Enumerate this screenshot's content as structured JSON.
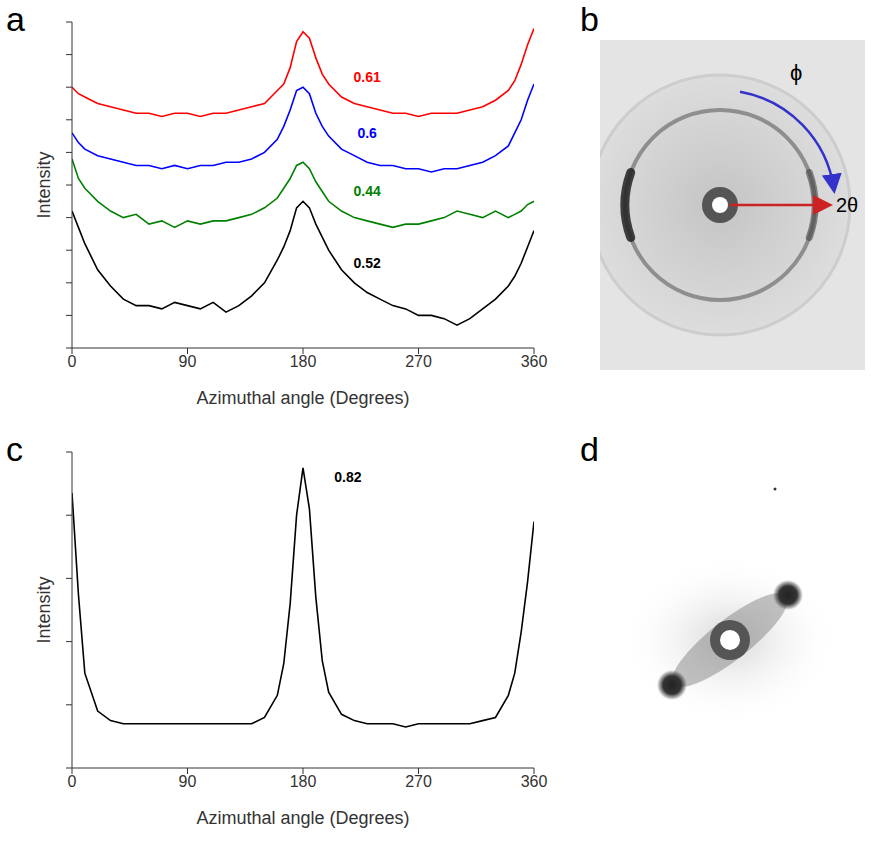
{
  "chart_data": [
    {
      "panel": "a",
      "type": "line",
      "x_label": "Azimuthal angle (Degrees)",
      "y_label": "Intensity",
      "x": [
        0,
        5,
        10,
        20,
        30,
        40,
        50,
        60,
        70,
        80,
        90,
        100,
        110,
        120,
        130,
        140,
        150,
        160,
        165,
        170,
        175,
        180,
        185,
        190,
        195,
        200,
        210,
        220,
        230,
        240,
        250,
        260,
        270,
        280,
        290,
        300,
        310,
        320,
        330,
        340,
        345,
        350,
        355,
        360
      ],
      "xlim": [
        0,
        360
      ],
      "xticks": [
        0,
        90,
        180,
        270,
        360
      ],
      "ylim": [
        0,
        10
      ],
      "yticks": [
        0,
        1,
        2,
        3,
        4,
        5,
        6,
        7,
        8,
        9,
        10
      ],
      "tick_labels": "x",
      "grid": false,
      "series": [
        {
          "name": "0.61",
          "color": "#ff0000",
          "values": [
            8.0,
            7.8,
            7.7,
            7.5,
            7.4,
            7.3,
            7.2,
            7.2,
            7.1,
            7.2,
            7.2,
            7.1,
            7.2,
            7.2,
            7.3,
            7.4,
            7.5,
            7.9,
            8.1,
            8.6,
            9.4,
            9.7,
            9.5,
            8.9,
            8.4,
            8.1,
            7.7,
            7.5,
            7.4,
            7.3,
            7.2,
            7.2,
            7.1,
            7.2,
            7.2,
            7.2,
            7.3,
            7.4,
            7.6,
            7.9,
            8.2,
            8.7,
            9.3,
            9.8
          ]
        },
        {
          "name": "0.6",
          "color": "#0000ff",
          "values": [
            6.6,
            6.3,
            6.1,
            5.9,
            5.8,
            5.7,
            5.6,
            5.6,
            5.5,
            5.6,
            5.5,
            5.6,
            5.6,
            5.7,
            5.7,
            5.8,
            6.0,
            6.4,
            6.8,
            7.3,
            7.9,
            8.0,
            7.8,
            7.2,
            6.8,
            6.5,
            6.1,
            5.9,
            5.7,
            5.6,
            5.6,
            5.5,
            5.5,
            5.4,
            5.5,
            5.5,
            5.6,
            5.7,
            5.9,
            6.2,
            6.6,
            7.0,
            7.6,
            8.1
          ]
        },
        {
          "name": "0.44",
          "color": "#008000",
          "values": [
            5.8,
            5.2,
            4.9,
            4.5,
            4.2,
            4.0,
            4.1,
            3.8,
            3.9,
            3.7,
            3.9,
            3.8,
            3.9,
            3.9,
            4.0,
            4.1,
            4.3,
            4.6,
            4.9,
            5.2,
            5.6,
            5.7,
            5.5,
            5.1,
            4.8,
            4.5,
            4.2,
            4.0,
            3.9,
            3.8,
            3.7,
            3.8,
            3.8,
            3.9,
            4.0,
            4.2,
            4.1,
            4.0,
            4.2,
            4.0,
            4.1,
            4.2,
            4.4,
            4.5
          ]
        },
        {
          "name": "0.52",
          "color": "#000000",
          "values": [
            4.2,
            3.7,
            3.2,
            2.4,
            1.9,
            1.5,
            1.3,
            1.3,
            1.2,
            1.4,
            1.3,
            1.2,
            1.4,
            1.1,
            1.3,
            1.6,
            2.0,
            2.7,
            3.1,
            3.6,
            4.3,
            4.5,
            4.3,
            3.8,
            3.4,
            3.0,
            2.4,
            2.0,
            1.7,
            1.5,
            1.3,
            1.2,
            1.0,
            1.0,
            0.9,
            0.7,
            0.9,
            1.2,
            1.5,
            1.9,
            2.2,
            2.6,
            3.1,
            3.6
          ]
        }
      ]
    },
    {
      "panel": "c",
      "type": "line",
      "x_label": "Azimuthal angle (Degrees)",
      "y_label": "Intensity",
      "x": [
        0,
        5,
        10,
        20,
        30,
        40,
        50,
        60,
        70,
        80,
        90,
        100,
        110,
        120,
        130,
        140,
        150,
        160,
        165,
        170,
        175,
        180,
        185,
        190,
        195,
        200,
        210,
        220,
        230,
        240,
        250,
        260,
        270,
        280,
        290,
        300,
        310,
        320,
        330,
        340,
        345,
        350,
        355,
        360
      ],
      "xlim": [
        0,
        360
      ],
      "xticks": [
        0,
        90,
        180,
        270,
        360
      ],
      "ylim": [
        0,
        10
      ],
      "yticks": [
        0,
        2,
        4,
        6,
        8,
        10
      ],
      "tick_labels": "x",
      "grid": false,
      "series": [
        {
          "name": "0.82",
          "color": "#000000",
          "values": [
            8.7,
            5.5,
            3.0,
            1.8,
            1.5,
            1.4,
            1.4,
            1.4,
            1.4,
            1.4,
            1.4,
            1.4,
            1.4,
            1.4,
            1.4,
            1.4,
            1.6,
            2.3,
            3.3,
            5.2,
            8.0,
            9.5,
            8.2,
            5.4,
            3.4,
            2.4,
            1.7,
            1.5,
            1.4,
            1.4,
            1.4,
            1.3,
            1.4,
            1.4,
            1.4,
            1.4,
            1.4,
            1.5,
            1.6,
            2.3,
            3.0,
            4.3,
            5.9,
            7.8
          ]
        }
      ]
    }
  ],
  "images": [
    {
      "panel": "b",
      "labels": {
        "azimuth": "ϕ",
        "radius": "2θ"
      }
    },
    {
      "panel": "d"
    }
  ]
}
